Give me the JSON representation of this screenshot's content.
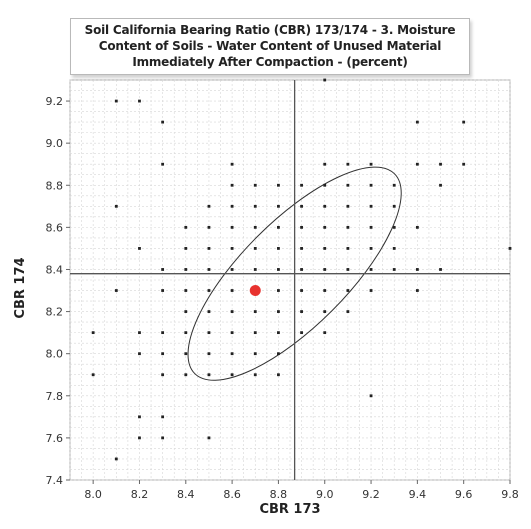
{
  "chart_data": {
    "type": "scatter",
    "title": "Soil California Bearing Ratio (CBR) 173/174 - 3. Moisture Content of Soils - Water Content of Unused Material Immediately After Compaction - (percent)",
    "xlabel": "CBR 173",
    "ylabel": "CBR 174",
    "xlim": [
      7.9,
      9.8
    ],
    "ylim": [
      7.4,
      9.3
    ],
    "x_ticks": [
      "8.0",
      "8.2",
      "8.4",
      "8.6",
      "8.8",
      "9.0",
      "9.2",
      "9.4",
      "9.6",
      "9.8"
    ],
    "y_ticks": [
      "7.4",
      "7.6",
      "7.8",
      "8.0",
      "8.2",
      "8.4",
      "8.6",
      "8.8",
      "9.0",
      "9.2"
    ],
    "grid": true,
    "crosshair": {
      "x": 8.87,
      "y": 8.38
    },
    "highlight_point": {
      "x": 8.7,
      "y": 8.3,
      "color": "#e8322f"
    },
    "ellipse": {
      "cx": 8.87,
      "cy": 8.38,
      "rx": 0.61,
      "ry": 0.25,
      "angle_deg": 45
    },
    "point_color": "#222222",
    "points": [
      [
        8.1,
        9.2
      ],
      [
        8.2,
        9.2
      ],
      [
        8.3,
        9.1
      ],
      [
        8.3,
        8.9
      ],
      [
        8.1,
        8.7
      ],
      [
        9.0,
        9.3
      ],
      [
        9.4,
        9.1
      ],
      [
        9.6,
        9.1
      ],
      [
        8.6,
        8.9
      ],
      [
        9.0,
        8.9
      ],
      [
        9.1,
        8.9
      ],
      [
        9.2,
        8.9
      ],
      [
        9.4,
        8.9
      ],
      [
        9.5,
        8.9
      ],
      [
        9.6,
        8.9
      ],
      [
        8.6,
        8.8
      ],
      [
        8.7,
        8.8
      ],
      [
        8.8,
        8.8
      ],
      [
        8.9,
        8.8
      ],
      [
        9.0,
        8.8
      ],
      [
        9.1,
        8.8
      ],
      [
        9.2,
        8.8
      ],
      [
        9.3,
        8.8
      ],
      [
        9.5,
        8.8
      ],
      [
        8.5,
        8.7
      ],
      [
        8.6,
        8.7
      ],
      [
        8.7,
        8.7
      ],
      [
        8.8,
        8.7
      ],
      [
        8.9,
        8.7
      ],
      [
        9.0,
        8.7
      ],
      [
        9.1,
        8.7
      ],
      [
        9.2,
        8.7
      ],
      [
        9.3,
        8.7
      ],
      [
        8.4,
        8.6
      ],
      [
        8.5,
        8.6
      ],
      [
        8.6,
        8.6
      ],
      [
        8.7,
        8.6
      ],
      [
        8.8,
        8.6
      ],
      [
        8.9,
        8.6
      ],
      [
        9.0,
        8.6
      ],
      [
        9.1,
        8.6
      ],
      [
        9.2,
        8.6
      ],
      [
        9.3,
        8.6
      ],
      [
        9.4,
        8.6
      ],
      [
        8.2,
        8.5
      ],
      [
        8.4,
        8.5
      ],
      [
        8.5,
        8.5
      ],
      [
        8.6,
        8.5
      ],
      [
        8.7,
        8.5
      ],
      [
        8.8,
        8.5
      ],
      [
        8.9,
        8.5
      ],
      [
        9.0,
        8.5
      ],
      [
        9.1,
        8.5
      ],
      [
        9.2,
        8.5
      ],
      [
        9.3,
        8.5
      ],
      [
        9.8,
        8.5
      ],
      [
        8.3,
        8.4
      ],
      [
        8.4,
        8.4
      ],
      [
        8.5,
        8.4
      ],
      [
        8.6,
        8.4
      ],
      [
        8.7,
        8.4
      ],
      [
        8.8,
        8.4
      ],
      [
        8.9,
        8.4
      ],
      [
        9.0,
        8.4
      ],
      [
        9.1,
        8.4
      ],
      [
        9.2,
        8.4
      ],
      [
        9.3,
        8.4
      ],
      [
        9.4,
        8.4
      ],
      [
        9.5,
        8.4
      ],
      [
        8.1,
        8.3
      ],
      [
        8.3,
        8.3
      ],
      [
        8.4,
        8.3
      ],
      [
        8.5,
        8.3
      ],
      [
        8.6,
        8.3
      ],
      [
        8.8,
        8.3
      ],
      [
        8.9,
        8.3
      ],
      [
        9.0,
        8.3
      ],
      [
        9.1,
        8.3
      ],
      [
        9.2,
        8.3
      ],
      [
        9.4,
        8.3
      ],
      [
        8.4,
        8.2
      ],
      [
        8.5,
        8.2
      ],
      [
        8.6,
        8.2
      ],
      [
        8.7,
        8.2
      ],
      [
        8.8,
        8.2
      ],
      [
        8.9,
        8.2
      ],
      [
        9.0,
        8.2
      ],
      [
        9.1,
        8.2
      ],
      [
        8.2,
        8.1
      ],
      [
        8.3,
        8.1
      ],
      [
        8.4,
        8.1
      ],
      [
        8.5,
        8.1
      ],
      [
        8.6,
        8.1
      ],
      [
        8.7,
        8.1
      ],
      [
        8.8,
        8.1
      ],
      [
        8.9,
        8.1
      ],
      [
        9.0,
        8.1
      ],
      [
        8.0,
        8.1
      ],
      [
        8.2,
        8.0
      ],
      [
        8.3,
        8.0
      ],
      [
        8.4,
        8.0
      ],
      [
        8.5,
        8.0
      ],
      [
        8.6,
        8.0
      ],
      [
        8.7,
        8.0
      ],
      [
        8.8,
        8.0
      ],
      [
        8.0,
        7.9
      ],
      [
        8.3,
        7.9
      ],
      [
        8.4,
        7.9
      ],
      [
        8.5,
        7.9
      ],
      [
        8.6,
        7.9
      ],
      [
        8.7,
        7.9
      ],
      [
        8.8,
        7.9
      ],
      [
        9.2,
        7.8
      ],
      [
        8.2,
        7.7
      ],
      [
        8.3,
        7.7
      ],
      [
        8.2,
        7.6
      ],
      [
        8.3,
        7.6
      ],
      [
        8.5,
        7.6
      ],
      [
        8.1,
        7.5
      ]
    ]
  }
}
